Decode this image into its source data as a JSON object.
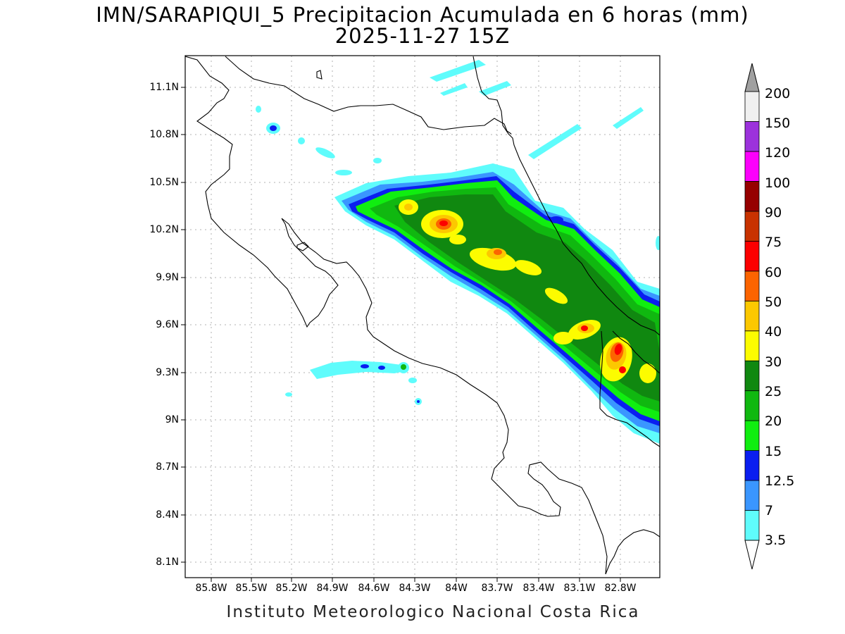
{
  "header": {
    "title": "IMN/SARAPIQUI_5 Precipitacion Acumulada en 6 horas (mm)",
    "subtitle": "2025-11-27 15Z"
  },
  "axes": {
    "lat_labels": [
      "11.1N",
      "10.8N",
      "10.5N",
      "10.2N",
      "9.9N",
      "9.6N",
      "9.3N",
      "9N",
      "8.7N",
      "8.4N",
      "8.1N"
    ],
    "lon_labels": [
      "85.8W",
      "85.5W",
      "85.2W",
      "84.9W",
      "84.6W",
      "84.3W",
      "84W",
      "83.7W",
      "83.4W",
      "83.1W",
      "82.8W"
    ]
  },
  "colorbar": {
    "levels": [
      "3.5",
      "7",
      "12.5",
      "15",
      "20",
      "25",
      "30",
      "40",
      "50",
      "60",
      "75",
      "90",
      "100",
      "120",
      "150",
      "200"
    ],
    "colors": [
      "#5ffcfc",
      "#3a96ff",
      "#0a1ef0",
      "#10ee10",
      "#10b810",
      "#108810",
      "#fcfc00",
      "#fcc800",
      "#fc6400",
      "#fc0000",
      "#c83200",
      "#960000",
      "#fc00fc",
      "#9c32dc",
      "#f0f0f0",
      "#a0a0a0"
    ]
  },
  "footer": "Instituto Meteorologico Nacional Costa Rica"
}
